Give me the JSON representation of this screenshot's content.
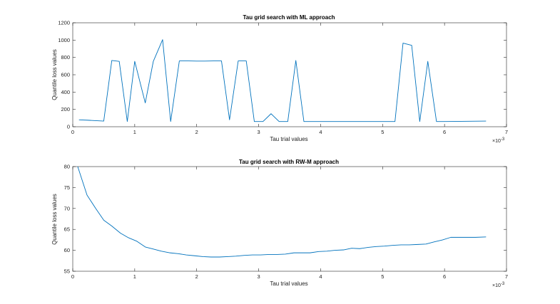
{
  "chart_data": [
    {
      "type": "line",
      "title": "Tau grid search with ML approach",
      "xlabel": "Tau trial values",
      "ylabel": "Quantile loss values",
      "xlim": [
        0,
        7
      ],
      "ylim": [
        0,
        1200
      ],
      "x_ticks": [
        "0",
        "1",
        "2",
        "3",
        "4",
        "5",
        "6",
        "7"
      ],
      "y_ticks": [
        "0",
        "200",
        "400",
        "600",
        "800",
        "1000",
        "1200"
      ],
      "x_exponent_base": "×10",
      "x_exponent_power": "-3",
      "grid": false,
      "color": "#0072BD",
      "series": [
        {
          "x": [
            0.1,
            0.25,
            0.5,
            0.63,
            0.75,
            0.88,
            1.0,
            1.17,
            1.3,
            1.45,
            1.58,
            1.72,
            1.87,
            2.0,
            2.13,
            2.27,
            2.4,
            2.53,
            2.67,
            2.8,
            2.93,
            3.07,
            3.2,
            3.33,
            3.47,
            3.6,
            3.73,
            4.0,
            4.5,
            5.0,
            5.2,
            5.33,
            5.47,
            5.6,
            5.73,
            5.87,
            6.0,
            6.67
          ],
          "y": [
            80,
            75,
            65,
            765,
            755,
            60,
            755,
            275,
            755,
            1005,
            60,
            760,
            760,
            758,
            758,
            760,
            760,
            80,
            760,
            760,
            60,
            60,
            150,
            60,
            60,
            765,
            60,
            60,
            60,
            60,
            60,
            965,
            940,
            60,
            755,
            60,
            60,
            65
          ]
        }
      ]
    },
    {
      "type": "line",
      "title": "Tau grid search with RW-M approach",
      "xlabel": "Tau trial values",
      "ylabel": "Quantile loss values",
      "xlim": [
        0,
        7
      ],
      "ylim": [
        55,
        80
      ],
      "x_ticks": [
        "0",
        "1",
        "2",
        "3",
        "4",
        "5",
        "6",
        "7"
      ],
      "y_ticks": [
        "55",
        "60",
        "65",
        "70",
        "75",
        "80"
      ],
      "x_exponent_base": "×10",
      "x_exponent_power": "-3",
      "grid": false,
      "color": "#0072BD",
      "series": [
        {
          "x": [
            0.08,
            0.23,
            0.37,
            0.5,
            0.63,
            0.77,
            0.9,
            1.03,
            1.17,
            1.3,
            1.43,
            1.57,
            1.7,
            1.83,
            1.97,
            2.1,
            2.23,
            2.37,
            2.5,
            2.63,
            2.77,
            2.9,
            3.03,
            3.17,
            3.3,
            3.43,
            3.57,
            3.7,
            3.83,
            3.97,
            4.1,
            4.23,
            4.37,
            4.5,
            4.63,
            4.77,
            4.9,
            5.03,
            5.17,
            5.3,
            5.43,
            5.57,
            5.7,
            5.83,
            5.97,
            6.1,
            6.23,
            6.37,
            6.5,
            6.67
          ],
          "y": [
            80.0,
            73.2,
            70.0,
            67.2,
            65.8,
            64.1,
            63.0,
            62.2,
            60.8,
            60.3,
            59.8,
            59.4,
            59.2,
            58.9,
            58.7,
            58.5,
            58.4,
            58.4,
            58.5,
            58.6,
            58.8,
            58.9,
            58.9,
            59.0,
            59.0,
            59.1,
            59.4,
            59.4,
            59.4,
            59.7,
            59.8,
            60.0,
            60.1,
            60.5,
            60.4,
            60.7,
            60.9,
            61.0,
            61.2,
            61.3,
            61.3,
            61.4,
            61.5,
            62.0,
            62.5,
            63.1,
            63.1,
            63.1,
            63.1,
            63.2
          ]
        }
      ]
    }
  ]
}
